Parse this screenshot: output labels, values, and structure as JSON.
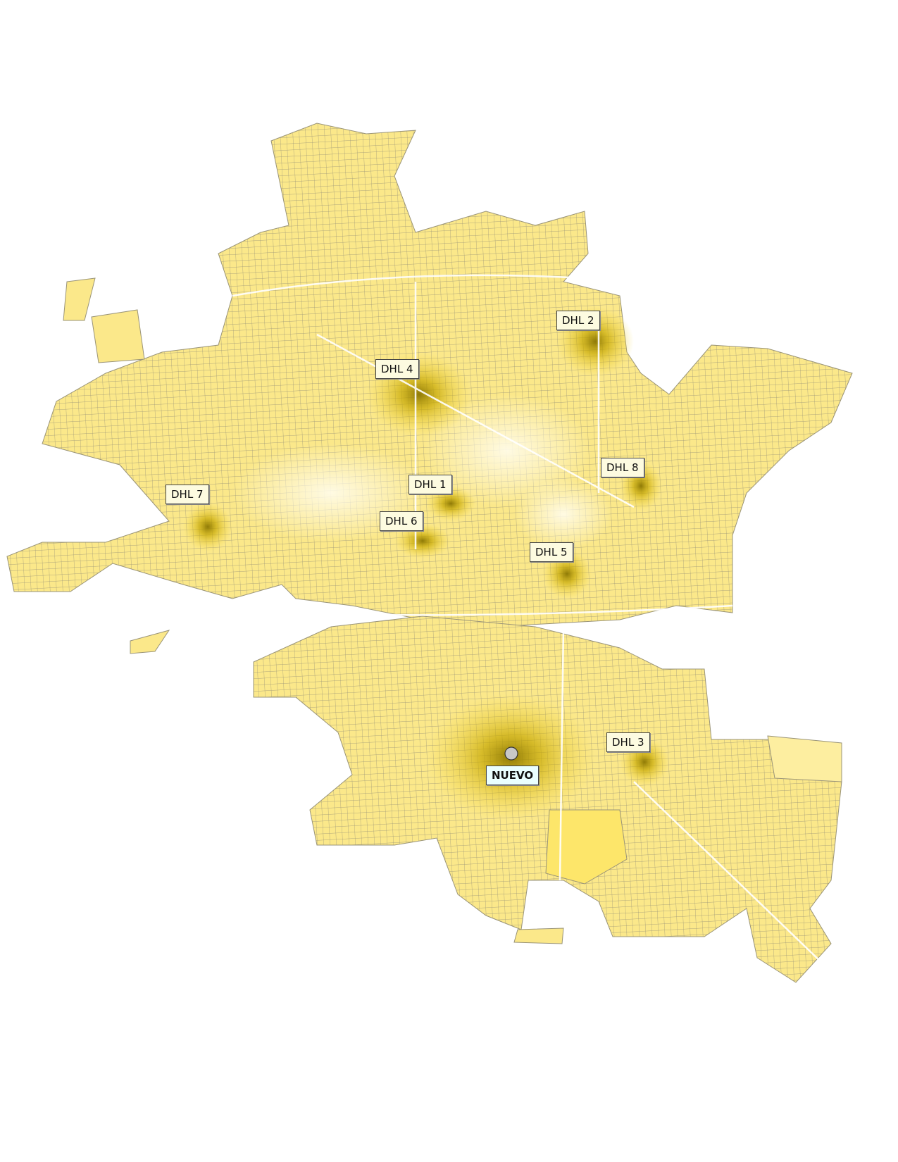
{
  "map": {
    "colors": {
      "base": "#fbe88a",
      "light": "#fdf3c0",
      "mid": "#f7d93a",
      "dark": "#9c8400",
      "streets": "#9a9478",
      "label_bg": "#fdfbe0",
      "main_label_bg": "#eaffff"
    },
    "markers": [
      {
        "id": "dhl2",
        "label": "DHL 2"
      },
      {
        "id": "dhl4",
        "label": "DHL 4"
      },
      {
        "id": "dhl8",
        "label": "DHL 8"
      },
      {
        "id": "dhl1",
        "label": "DHL 1"
      },
      {
        "id": "dhl7",
        "label": "DHL 7"
      },
      {
        "id": "dhl6",
        "label": "DHL 6"
      },
      {
        "id": "dhl5",
        "label": "DHL 5"
      },
      {
        "id": "dhl3",
        "label": "DHL 3"
      },
      {
        "id": "nuevo",
        "label": "NUEVO",
        "icon": "circle-marker-icon"
      }
    ]
  }
}
